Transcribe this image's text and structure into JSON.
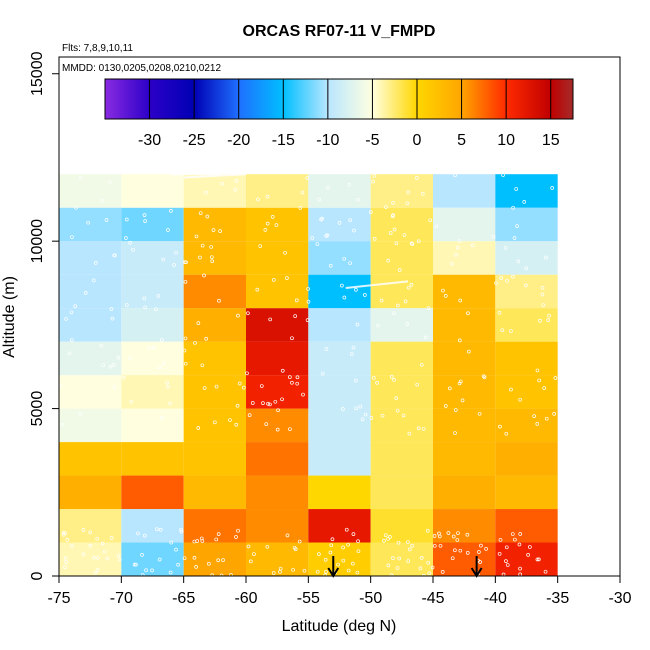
{
  "chart_data": {
    "type": "heatmap",
    "title": "ORCAS RF07-11 V_FMPD",
    "subtitle_flights": "Flts: 7,8,9,10,11",
    "subtitle_dates": "MMDD: 0130,0205,0208,0210,0212",
    "xlabel": "Latitude (deg N)",
    "ylabel": "Altitude (m)",
    "xlim": [
      -75,
      -30
    ],
    "ylim": [
      0,
      15500
    ],
    "x_ticks": [
      "-75",
      "-70",
      "-65",
      "-60",
      "-55",
      "-50",
      "-45",
      "-40",
      "-35",
      "-30"
    ],
    "y_ticks": [
      "0",
      "5000",
      "10000",
      "15000"
    ],
    "colorbar": {
      "range": [
        -35,
        17.5
      ],
      "tick_labels": [
        "-30",
        "-25",
        "-20",
        "-15",
        "-10",
        "-5",
        "0",
        "5",
        "10",
        "15"
      ],
      "stops": [
        {
          "v": -35,
          "color": "#8a2be2"
        },
        {
          "v": -30,
          "color": "#2c00c8"
        },
        {
          "v": -25,
          "color": "#0000b4"
        },
        {
          "v": -20,
          "color": "#1f6fff"
        },
        {
          "v": -15,
          "color": "#00bfff"
        },
        {
          "v": -10,
          "color": "#b9e6ff"
        },
        {
          "v": -5,
          "color": "#ffffe0"
        },
        {
          "v": 0,
          "color": "#ffd700"
        },
        {
          "v": 5,
          "color": "#ffa500"
        },
        {
          "v": 10,
          "color": "#ff2a00"
        },
        {
          "v": 15,
          "color": "#c00000"
        },
        {
          "v": 17.5,
          "color": "#a52a2a"
        }
      ]
    },
    "cell_width_deg": 5,
    "cell_height_m": 1000,
    "lat_bins": [
      -75,
      -70,
      -65,
      -60,
      -55,
      -50,
      -45,
      -40
    ],
    "alt_bins": [
      0,
      1000,
      2000,
      3000,
      4000,
      5000,
      6000,
      7000,
      8000,
      9000,
      10000,
      11000
    ],
    "values": [
      [
        -4,
        -12,
        5,
        3,
        1,
        -2,
        8,
        11
      ],
      [
        -3,
        -10,
        7,
        6,
        12,
        -1,
        6,
        8
      ],
      [
        4,
        8,
        3,
        6,
        0,
        -2,
        4,
        3
      ],
      [
        2,
        2,
        2,
        7,
        -9,
        -2,
        3,
        4
      ],
      [
        -6,
        -5,
        2,
        6,
        -9,
        -2,
        3,
        3
      ],
      [
        -5,
        -4,
        2,
        11,
        -9,
        -2,
        3,
        2
      ],
      [
        -7,
        -5,
        2,
        12,
        -9,
        -2,
        3,
        2
      ],
      [
        -10,
        -8,
        4,
        13,
        -10,
        -7,
        3,
        -2
      ],
      [
        -10,
        -9,
        6,
        2,
        -15,
        -2,
        3,
        -3
      ],
      [
        -10,
        -9,
        3,
        2,
        -11,
        -2,
        -4,
        -8
      ],
      [
        -11,
        -12,
        3,
        2,
        -10,
        -2,
        -7,
        -11
      ],
      [
        -6,
        -5,
        -4,
        -3,
        -7,
        -3,
        -10,
        -15
      ]
    ],
    "annotations": [
      {
        "type": "arrow",
        "x": -53,
        "label": "down-arrow"
      },
      {
        "type": "arrow",
        "x": -41.5,
        "label": "down-arrow"
      }
    ]
  }
}
